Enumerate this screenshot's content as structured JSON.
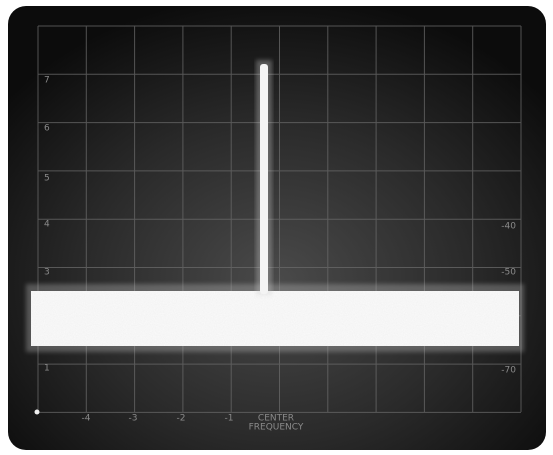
{
  "screen": {
    "left_scale": [
      "7",
      "6",
      "5",
      "4",
      "3",
      "1"
    ],
    "right_scale": [
      "-40",
      "-50",
      "-70"
    ],
    "bottom_scale": [
      "-4",
      "-3",
      "-2",
      "-1"
    ],
    "center_label": [
      "CENTER",
      "FREQUENCY"
    ]
  }
}
